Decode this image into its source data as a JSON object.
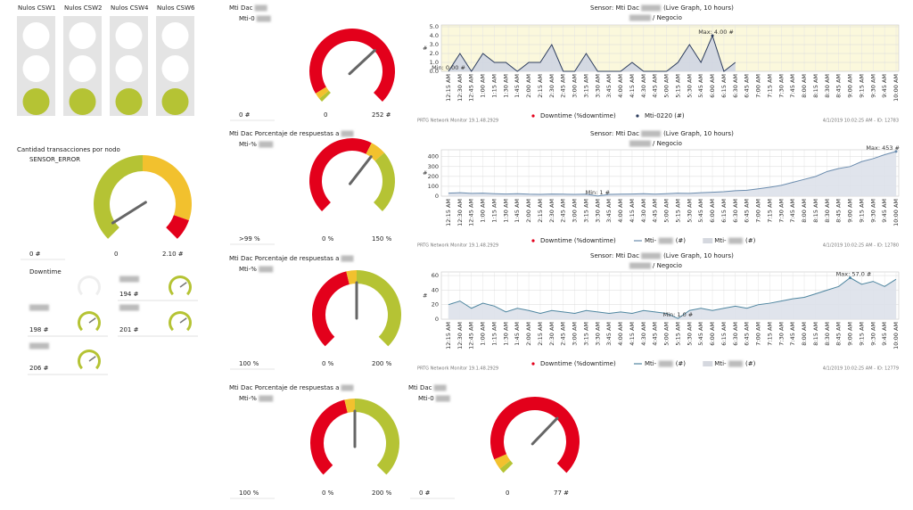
{
  "status_lights": [
    {
      "label": "Nulos CSW1",
      "lights": [
        "off",
        "off",
        "on"
      ]
    },
    {
      "label": "Nulos CSW2",
      "lights": [
        "off",
        "off",
        "on"
      ]
    },
    {
      "label": "Nulos CSW4",
      "lights": [
        "off",
        "off",
        "on"
      ]
    },
    {
      "label": "Nulos CSW6",
      "lights": [
        "off",
        "off",
        "on"
      ]
    }
  ],
  "on_color": "#b5c334",
  "transactions": {
    "title": "Cantidad transacciones por nodo",
    "subtitle": "SENSOR_ERROR",
    "gauge": {
      "reading": "0 #",
      "min": 0,
      "max": {
        "value": 2.1,
        "label": "2.10 #"
      },
      "needle": 0.1,
      "bands": [
        {
          "from": 0,
          "to": 1.05,
          "color": "#b5c334"
        },
        {
          "from": 1.05,
          "to": 1.9,
          "color": "#f2c12e"
        },
        {
          "from": 1.9,
          "to": 2.1,
          "color": "#e3001b"
        }
      ]
    }
  },
  "small_gauges": {
    "label": "Downtime",
    "readings": [
      "194 #",
      "198 #",
      "201 #",
      "206 #"
    ]
  },
  "gauges": [
    {
      "title": "Mti Dac",
      "subtitle": "Mti-0",
      "reading": "0 #",
      "min": 0,
      "max": {
        "value": 252,
        "label": "252 #"
      },
      "needle": 170,
      "bands": [
        {
          "from": 0,
          "to": 5,
          "color": "#b5c334"
        },
        {
          "from": 5,
          "to": 13,
          "color": "#f2c12e"
        },
        {
          "from": 13,
          "to": 252,
          "color": "#e3001b"
        }
      ]
    },
    {
      "title": "Mti Dac Porcentaje de respuestas a",
      "subtitle": "Mti-%",
      "reading": ">99 %",
      "min": {
        "value": 0,
        "label": "0 %"
      },
      "max": {
        "value": 150,
        "label": "150 %"
      },
      "needle": 96,
      "bands": [
        {
          "from": 0,
          "to": 90,
          "color": "#e3001b"
        },
        {
          "from": 90,
          "to": 102,
          "color": "#f2c12e"
        },
        {
          "from": 102,
          "to": 150,
          "color": "#b5c334"
        }
      ]
    },
    {
      "title": "Mti Dac Porcentaje de respuestas a",
      "subtitle": "Mti-%",
      "reading": "100 %",
      "min": {
        "value": 0,
        "label": "0 %"
      },
      "max": {
        "value": 200,
        "label": "200 %"
      },
      "needle": 100,
      "bands": [
        {
          "from": 0,
          "to": 90,
          "color": "#e3001b"
        },
        {
          "from": 90,
          "to": 100,
          "color": "#f2c12e"
        },
        {
          "from": 100,
          "to": 200,
          "color": "#b5c334"
        }
      ]
    },
    {
      "title": "Mti Dac Porcentaje de respuestas a",
      "subtitle": "Mti-%",
      "reading": "100 %",
      "min": {
        "value": 0,
        "label": "0 %"
      },
      "max": {
        "value": 200,
        "label": "200 %"
      },
      "needle": 100,
      "bands": [
        {
          "from": 0,
          "to": 90,
          "color": "#e3001b"
        },
        {
          "from": 90,
          "to": 100,
          "color": "#f2c12e"
        },
        {
          "from": 100,
          "to": 200,
          "color": "#b5c334"
        }
      ]
    },
    {
      "title": "Mti Dac",
      "subtitle": "Mti-0",
      "reading": "0 #",
      "min": 0,
      "max": {
        "value": 77,
        "label": "77 #"
      },
      "needle": 51,
      "bands": [
        {
          "from": 0,
          "to": 2,
          "color": "#b5c334"
        },
        {
          "from": 2,
          "to": 6,
          "color": "#f2c12e"
        },
        {
          "from": 6,
          "to": 77,
          "color": "#e3001b"
        }
      ]
    }
  ],
  "time_labels": [
    "12:15 AM",
    "12:30 AM",
    "12:45 AM",
    "1:00 AM",
    "1:15 AM",
    "1:30 AM",
    "1:45 AM",
    "2:00 AM",
    "2:15 AM",
    "2:30 AM",
    "2:45 AM",
    "3:00 AM",
    "3:15 AM",
    "3:30 AM",
    "3:45 AM",
    "4:00 AM",
    "4:15 AM",
    "4:30 AM",
    "4:45 AM",
    "5:00 AM",
    "5:15 AM",
    "5:30 AM",
    "5:45 AM",
    "6:00 AM",
    "6:15 AM",
    "6:30 AM",
    "6:45 AM",
    "7:00 AM",
    "7:15 AM",
    "7:30 AM",
    "7:45 AM",
    "8:00 AM",
    "8:15 AM",
    "8:30 AM",
    "8:45 AM",
    "9:00 AM",
    "9:15 AM",
    "9:30 AM",
    "9:45 AM",
    "10:00 AM"
  ],
  "charts": [
    {
      "type": "area",
      "title_prefix": "Sensor: Mti Dac",
      "title_suffix": "(Live Graph, 10 hours)",
      "subtitle": "/ Negocio",
      "y_label": "#",
      "ylim": [
        0,
        5.2
      ],
      "yticks": [
        {
          "value": 0,
          "label": "0.0"
        },
        {
          "value": 1,
          "label": "1.0"
        },
        {
          "value": 2,
          "label": "2.0"
        },
        {
          "value": 3,
          "label": "3.0"
        },
        {
          "value": 4,
          "label": "4.0"
        },
        {
          "value": 5,
          "label": "5.0"
        }
      ],
      "background": "#fbf8dc",
      "max_label": "Max: 4.00 #",
      "min_label": "Min: 0.00 #",
      "series": [
        {
          "color": "#2b3b5c",
          "fill": "#cfd5e2",
          "values": [
            0,
            2,
            0,
            2,
            1,
            1,
            0,
            1,
            1,
            3,
            0,
            0,
            2,
            0,
            0,
            0,
            1,
            0,
            0,
            0,
            1,
            3,
            1,
            4,
            0,
            1,
            null,
            null,
            null,
            null,
            null,
            null,
            null,
            null,
            null,
            null,
            null,
            null,
            null,
            null
          ]
        }
      ],
      "legend": [
        {
          "name": "Downtime (%downtime)",
          "color": "#e3001b",
          "symbol": "dot"
        },
        {
          "name": "Mti-0220 (#)",
          "color": "#2b3b5c",
          "symbol": "dot"
        }
      ],
      "footer_left": "PRTG Network Monitor 19.1.48.2929",
      "footer_right": "4/1/2019 10:02:25 AM - ID: 12783"
    },
    {
      "type": "area",
      "title_prefix": "Sensor: Mti Dac",
      "title_suffix": "(Live Graph, 10 hours)",
      "subtitle": "/ Negocio",
      "y_label": "#",
      "ylim": [
        0,
        470
      ],
      "yticks": [
        0,
        100,
        200,
        300,
        400
      ],
      "background": "#ffffff",
      "max_label": "Max: 453 #",
      "min_label": "Min: 1 #",
      "series": [
        {
          "color": "#6b8cae",
          "fill": "#dde1ea",
          "values": [
            30,
            35,
            28,
            30,
            25,
            22,
            25,
            20,
            18,
            22,
            20,
            18,
            20,
            1,
            18,
            20,
            22,
            25,
            20,
            25,
            30,
            28,
            35,
            40,
            45,
            55,
            60,
            75,
            90,
            110,
            140,
            170,
            200,
            250,
            280,
            300,
            350,
            380,
            420,
            453
          ]
        }
      ],
      "legend": [
        {
          "name": "Downtime (%downtime)",
          "color": "#e3001b",
          "symbol": "dot"
        },
        {
          "name": "Mti-",
          "unit": "(#)",
          "color": "#6b8cae",
          "symbol": "line"
        },
        {
          "name": "Mti-",
          "unit": "(#)",
          "color": "#d5d8df",
          "symbol": "box"
        }
      ],
      "footer_left": "PRTG Network Monitor 19.1.48.2929",
      "footer_right": "4/1/2019 10:02:25 AM - ID: 12780"
    },
    {
      "type": "area",
      "title_prefix": "Sensor: Mti Dac",
      "title_suffix": "(Live Graph, 10 hours)",
      "subtitle": "/ Negocio",
      "y_label": "#",
      "ylim": [
        0,
        65
      ],
      "yticks": [
        0,
        20,
        40,
        60
      ],
      "background": "#ffffff",
      "max_label": "Max: 57.0 #",
      "min_label": "Min: 1.0 #",
      "series": [
        {
          "color": "#4f86a0",
          "fill": "#dde1ea",
          "values": [
            20,
            25,
            15,
            22,
            18,
            10,
            15,
            12,
            8,
            12,
            10,
            8,
            12,
            10,
            8,
            10,
            8,
            12,
            10,
            8,
            1,
            12,
            15,
            12,
            15,
            18,
            15,
            20,
            22,
            25,
            28,
            30,
            35,
            40,
            45,
            57,
            48,
            52,
            45,
            55
          ]
        }
      ],
      "legend": [
        {
          "name": "Downtime (%downtime)",
          "color": "#e3001b",
          "symbol": "dot"
        },
        {
          "name": "Mti-",
          "unit": "(#)",
          "color": "#4f86a0",
          "symbol": "line"
        },
        {
          "name": "Mti-",
          "unit": "(#)",
          "color": "#d5d8df",
          "symbol": "box"
        }
      ],
      "footer_left": "PRTG Network Monitor 19.1.48.2929",
      "footer_right": "4/1/2019 10:02:25 AM - ID: 12779"
    }
  ]
}
